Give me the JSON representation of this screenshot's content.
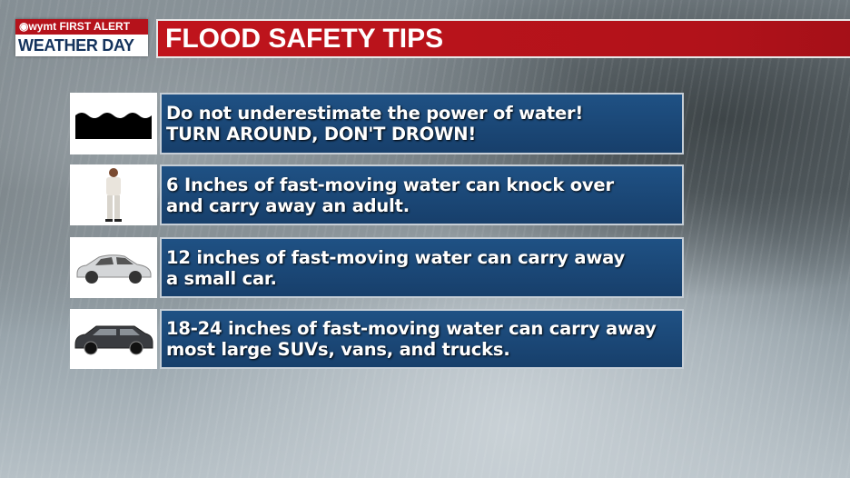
{
  "logo": {
    "top": "◉wymt FIRST ALERT",
    "bottom": "WEATHER DAY"
  },
  "title": "FLOOD SAFETY TIPS",
  "colors": {
    "title_red": "#c0141c",
    "panel_blue": "#1f5184",
    "logo_navy": "#13325c"
  },
  "tips": [
    {
      "icon": "water-waves-icon",
      "lines": [
        "Do not underestimate the power of water!",
        "TURN AROUND, DON'T DROWN!"
      ]
    },
    {
      "icon": "adult-person-icon",
      "lines": [
        "6 Inches of fast-moving water can knock over",
        "and carry away an adult."
      ]
    },
    {
      "icon": "small-car-icon",
      "lines": [
        "12 inches of fast-moving water can carry away",
        "a small car."
      ]
    },
    {
      "icon": "suv-icon",
      "lines": [
        "18-24 inches of fast-moving water can carry away",
        "most large SUVs, vans, and trucks."
      ]
    }
  ]
}
